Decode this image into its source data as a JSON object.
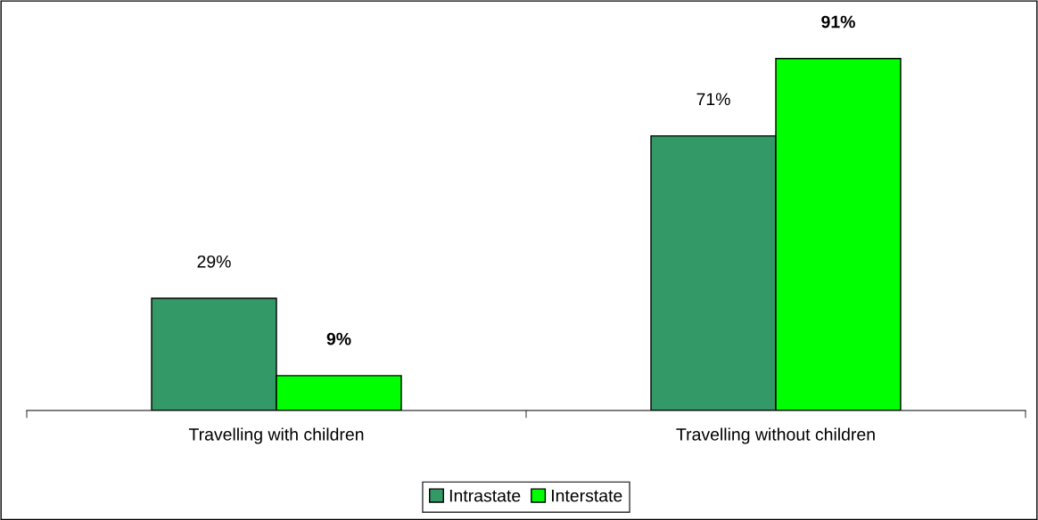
{
  "chart_data": {
    "type": "bar",
    "categories": [
      "Travelling with children",
      "Travelling without children"
    ],
    "series": [
      {
        "name": "Intrastate",
        "color": "#339966",
        "values": [
          29,
          71
        ],
        "value_labels": [
          "29%",
          "71%"
        ]
      },
      {
        "name": "Interstate",
        "color": "#00ff00",
        "values": [
          9,
          91
        ],
        "value_labels": [
          "9%",
          "91%"
        ]
      }
    ],
    "ylim": [
      0,
      105
    ],
    "tick_labels": "x",
    "legend": "bottom",
    "grid": false
  }
}
